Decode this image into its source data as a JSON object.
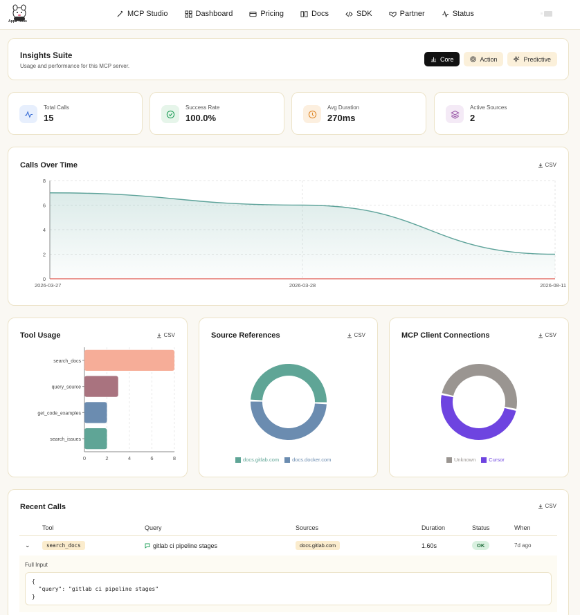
{
  "brand": {
    "name": "Appa Tools"
  },
  "nav": {
    "items": [
      {
        "label": "MCP Studio",
        "icon": "wand-icon"
      },
      {
        "label": "Dashboard",
        "icon": "grid-icon"
      },
      {
        "label": "Pricing",
        "icon": "card-icon"
      },
      {
        "label": "Docs",
        "icon": "book-icon"
      },
      {
        "label": "SDK",
        "icon": "code-icon"
      },
      {
        "label": "Partner",
        "icon": "handshake-icon"
      },
      {
        "label": "Status",
        "icon": "activity-icon"
      }
    ]
  },
  "header": {
    "title": "Insights Suite",
    "subtitle": "Usage and performance for this MCP server.",
    "modes": [
      {
        "label": "Core",
        "active": true
      },
      {
        "label": "Action",
        "active": false
      },
      {
        "label": "Predictive",
        "active": false
      }
    ]
  },
  "stats": [
    {
      "label": "Total Calls",
      "value": "15",
      "icon": "activity-icon",
      "color": "#3b82f6"
    },
    {
      "label": "Success Rate",
      "value": "100.0%",
      "icon": "check-circle-icon",
      "color": "#22a05b"
    },
    {
      "label": "Avg Duration",
      "value": "270ms",
      "icon": "clock-icon",
      "color": "#e0892b"
    },
    {
      "label": "Active Sources",
      "value": "2",
      "icon": "layers-icon",
      "color": "#9a5aa8"
    }
  ],
  "csv_label": "CSV",
  "chart_data": [
    {
      "type": "area",
      "title": "Calls Over Time",
      "x": [
        "2026-03-27",
        "2026-03-28",
        "2026-08-11"
      ],
      "series": [
        {
          "values": [
            7,
            6,
            2
          ],
          "color": "#5ea39a"
        },
        {
          "values": [
            0,
            0,
            0
          ],
          "color": "#e05a4f"
        }
      ],
      "ylim": [
        0,
        8
      ],
      "yticks": [
        0,
        2,
        4,
        6,
        8
      ],
      "grid": true
    },
    {
      "type": "bar",
      "orientation": "horizontal",
      "title": "Tool Usage",
      "categories": [
        "search_docs",
        "query_source",
        "get_code_examples",
        "search_issues"
      ],
      "values": [
        8,
        3,
        2,
        2
      ],
      "colors": [
        "#f6ad98",
        "#a9737f",
        "#6b8cb0",
        "#5fa596"
      ],
      "xlim": [
        0,
        8
      ],
      "xticks": [
        0,
        2,
        4,
        6,
        8
      ],
      "grid": true
    },
    {
      "type": "pie",
      "title": "Source References",
      "categories": [
        "docs.gitlab.com",
        "docs.docker.com"
      ],
      "values": [
        1,
        1
      ],
      "colors": [
        "#5fa596",
        "#6b8cb0"
      ],
      "legend": "bottom"
    },
    {
      "type": "pie",
      "title": "MCP Client Connections",
      "categories": [
        "Unknown",
        "Cursor"
      ],
      "values": [
        1,
        1
      ],
      "colors": [
        "#9a9591",
        "#6e44e0"
      ],
      "legend": "bottom"
    }
  ],
  "recent": {
    "title": "Recent Calls",
    "columns": [
      "Tool",
      "Query",
      "Sources",
      "Duration",
      "Status",
      "When"
    ],
    "rows": [
      {
        "tool": "search_docs",
        "query": "gitlab ci pipeline stages",
        "sources": "docs.gitlab.com",
        "duration": "1.60s",
        "status": "OK",
        "when": "7d ago"
      }
    ],
    "full_input_label": "Full Input",
    "full_input": "{\n  \"query\": \"gitlab ci pipeline stages\"\n}"
  }
}
